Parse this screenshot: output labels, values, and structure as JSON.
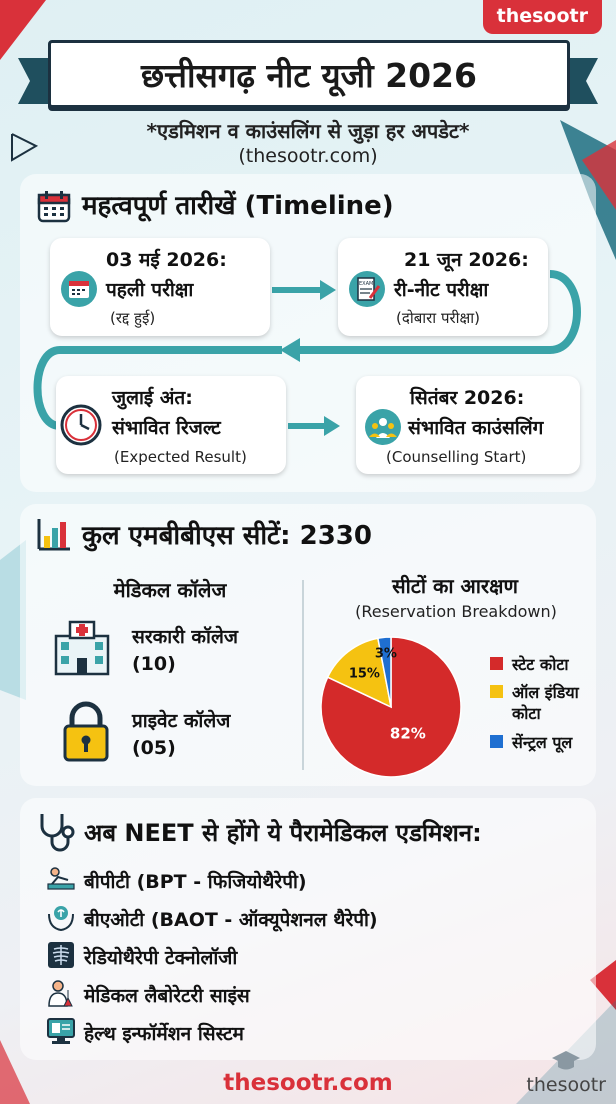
{
  "brand": "thesootr",
  "header": {
    "title": "छत्तीसगढ़ नीट यूजी 2026",
    "subtitle": "*एडमिशन व काउंसलिंग से जुड़ा हर अपडेट*",
    "site": "(thesootr.com)"
  },
  "timeline": {
    "title": "महत्वपूर्ण तारीखें (Timeline)",
    "icon": "calendar-icon",
    "events": [
      {
        "date": "03 मई 2026:",
        "label": "पहली परीक्षा",
        "note": "(रद्द हुई)",
        "icon": "calendar-icon"
      },
      {
        "date": "21 जून 2026:",
        "label": "री-नीट परीक्षा",
        "note": "(दोबारा परीक्षा)",
        "icon": "exam-paper-icon"
      },
      {
        "date": "जुलाई अंत:",
        "label": "संभावित रिजल्ट",
        "note": "(Expected Result)",
        "icon": "clock-icon"
      },
      {
        "date": "सितंबर 2026:",
        "label": "संभावित काउंसलिंग",
        "note": "(Counselling Start)",
        "icon": "counselling-group-icon"
      }
    ]
  },
  "seats": {
    "title": "कुल एमबीबीएस सीटें: 2330",
    "icon": "bar-chart-icon",
    "colleges_heading": "मेडिकल कॉलेज",
    "colleges": [
      {
        "name": "सरकारी कॉलेज",
        "count": "(10)",
        "icon": "hospital-icon"
      },
      {
        "name": "प्राइवेट कॉलेज",
        "count": "(05)",
        "icon": "padlock-icon"
      }
    ],
    "reservation_heading": "सीटों का आरक्षण",
    "reservation_subheading": "(Reservation Breakdown)",
    "legend": [
      {
        "line1": "स्टेट कोटा",
        "line2": "",
        "color": "#d42a2a"
      },
      {
        "line1": "ऑल इंडिया",
        "line2": "कोटा",
        "color": "#f5c211"
      },
      {
        "line1": "सेंन्ट्रल पूल",
        "line2": "",
        "color": "#1f6fd1"
      }
    ]
  },
  "chart_data": {
    "type": "pie",
    "categories": [
      "स्टेट कोटा",
      "ऑल इंडिया कोटा",
      "सेंन्ट्रल पूल"
    ],
    "values": [
      82,
      15,
      3
    ],
    "labels": [
      "82%",
      "15%",
      "3%"
    ],
    "colors": [
      "#d42a2a",
      "#f5c211",
      "#1f6fd1"
    ],
    "legend_placement": "right"
  },
  "paramedical": {
    "title": "अब NEET से होंगे ये पैरामेडिकल एडमिशन:",
    "icon": "stethoscope-icon",
    "items": [
      {
        "label": "बीपीटी (BPT - फिजियोथैरेपी)",
        "icon": "physiotherapy-icon"
      },
      {
        "label": "बीएओटी (BAOT - ऑक्यूपेशनल थैरेपी)",
        "icon": "hands-care-icon"
      },
      {
        "label": "रेडियोथैरेपी टेक्नोलॉजी",
        "icon": "xray-icon"
      },
      {
        "label": "मेडिकल लैबोरेटरी साइंस",
        "icon": "lab-scientist-icon"
      },
      {
        "label": "हेल्थ इन्फॉर्मेशन सिस्टम",
        "icon": "computer-icon"
      }
    ]
  },
  "footer": {
    "site": "thesootr.com",
    "watermark": "thesootr"
  }
}
